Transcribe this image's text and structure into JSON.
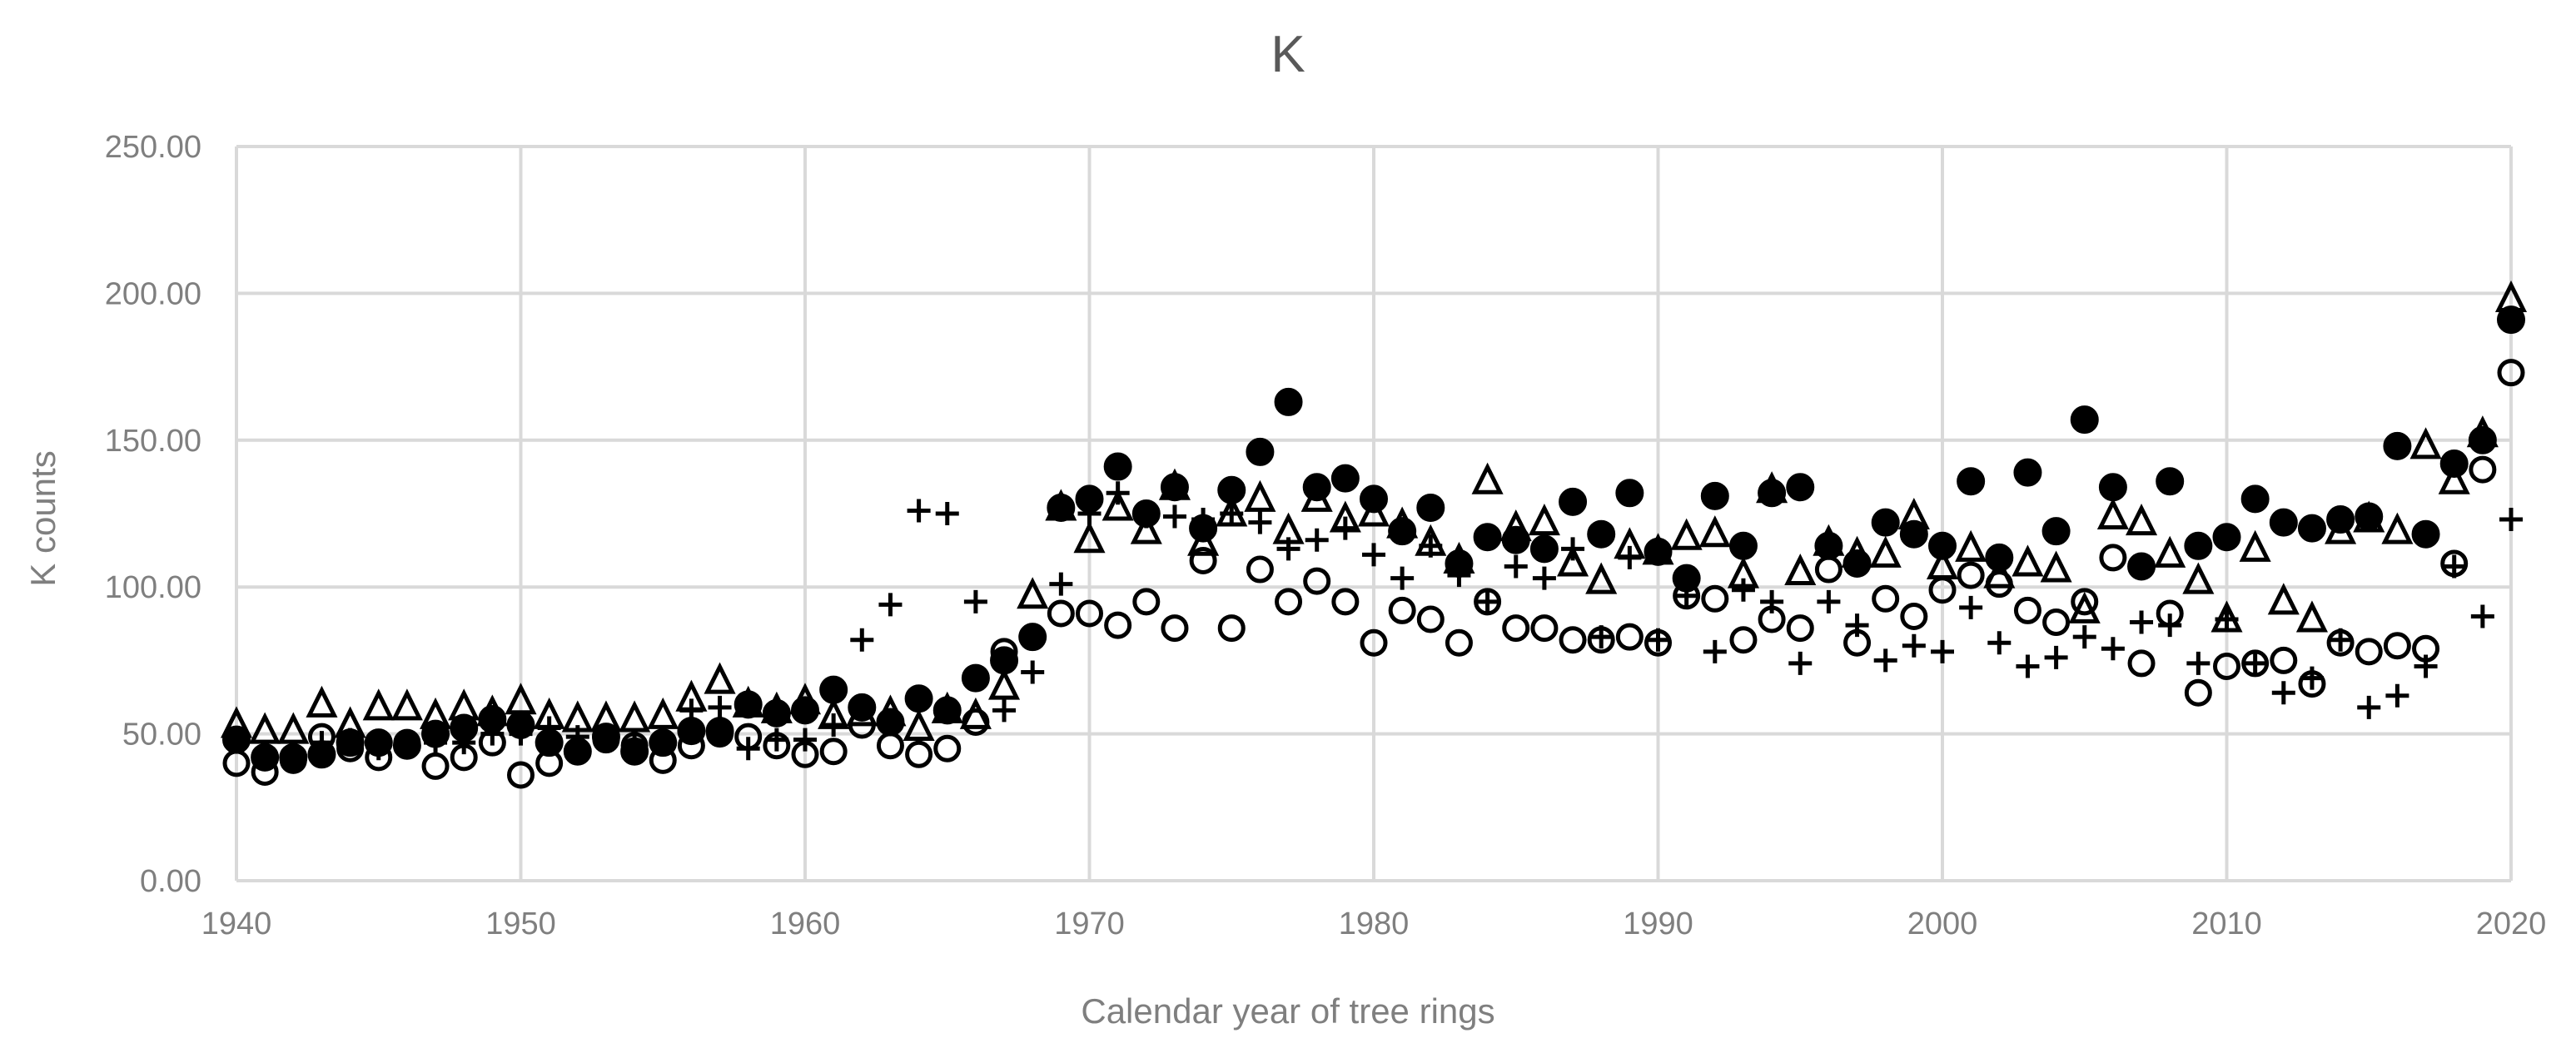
{
  "chart_data": {
    "type": "scatter",
    "title": "K",
    "xlabel": "Calendar year of tree rings",
    "ylabel": "K counts",
    "xlim": [
      1940,
      2020
    ],
    "ylim": [
      0,
      250
    ],
    "x_ticks": [
      "1940",
      "1950",
      "1960",
      "1970",
      "1980",
      "1990",
      "2000",
      "2010",
      "2020"
    ],
    "y_ticks": [
      "0.00",
      "50.00",
      "100.00",
      "150.00",
      "200.00",
      "250.00"
    ],
    "grid": true,
    "legend": "none",
    "series": [
      {
        "name": "filled-circle",
        "marker": "filled-circle",
        "x": [
          1940,
          1941,
          1942,
          1943,
          1944,
          1945,
          1946,
          1947,
          1948,
          1949,
          1950,
          1951,
          1952,
          1953,
          1954,
          1955,
          1956,
          1957,
          1958,
          1959,
          1960,
          1961,
          1962,
          1963,
          1964,
          1965,
          1966,
          1967,
          1968,
          1969,
          1970,
          1971,
          1972,
          1973,
          1974,
          1975,
          1976,
          1977,
          1978,
          1979,
          1980,
          1981,
          1982,
          1983,
          1984,
          1985,
          1986,
          1987,
          1988,
          1989,
          1990,
          1991,
          1992,
          1993,
          1994,
          1995,
          1996,
          1997,
          1998,
          1999,
          2000,
          2001,
          2002,
          2003,
          2004,
          2005,
          2006,
          2007,
          2008,
          2009,
          2010,
          2011,
          2012,
          2013,
          2014,
          2015,
          2016,
          2017,
          2018,
          2019,
          2020
        ],
        "y": [
          48,
          42,
          42,
          43,
          47,
          47,
          46,
          50,
          52,
          55,
          53,
          47,
          44,
          49,
          44,
          47,
          51,
          51,
          60,
          57,
          58,
          65,
          59,
          54,
          62,
          58,
          69,
          75,
          83,
          127,
          130,
          141,
          125,
          134,
          120,
          133,
          146,
          163,
          134,
          137,
          130,
          119,
          127,
          108,
          117,
          116,
          113,
          129,
          118,
          132,
          112,
          103,
          131,
          114,
          132,
          134,
          114,
          108,
          122,
          118,
          114,
          136,
          110,
          139,
          119,
          157,
          134,
          107,
          136,
          114,
          117,
          130,
          122,
          120,
          123,
          124,
          148,
          118,
          142,
          150,
          191
        ]
      },
      {
        "name": "open-circle",
        "marker": "open-circle",
        "x": [
          1940,
          1941,
          1942,
          1943,
          1944,
          1945,
          1946,
          1947,
          1948,
          1949,
          1950,
          1951,
          1952,
          1953,
          1954,
          1955,
          1956,
          1957,
          1958,
          1959,
          1960,
          1961,
          1962,
          1963,
          1964,
          1965,
          1966,
          1967,
          1968,
          1969,
          1970,
          1971,
          1972,
          1973,
          1974,
          1975,
          1976,
          1977,
          1978,
          1979,
          1980,
          1981,
          1982,
          1983,
          1984,
          1985,
          1986,
          1987,
          1988,
          1989,
          1990,
          1991,
          1992,
          1993,
          1994,
          1995,
          1996,
          1997,
          1998,
          1999,
          2000,
          2001,
          2002,
          2003,
          2004,
          2005,
          2006,
          2007,
          2008,
          2009,
          2010,
          2011,
          2012,
          2013,
          2014,
          2015,
          2016,
          2017,
          2018,
          2019,
          2020
        ],
        "y": [
          40,
          37,
          41,
          49,
          45,
          42,
          47,
          39,
          42,
          47,
          36,
          40,
          44,
          48,
          46,
          41,
          46,
          50,
          49,
          46,
          43,
          44,
          53,
          46,
          43,
          45,
          54,
          78,
          83,
          91,
          91,
          87,
          95,
          86,
          109,
          86,
          106,
          95,
          102,
          95,
          81,
          92,
          89,
          81,
          95,
          86,
          86,
          82,
          82,
          83,
          81,
          97,
          96,
          82,
          89,
          86,
          106,
          81,
          96,
          90,
          99,
          104,
          101,
          92,
          88,
          95,
          110,
          74,
          91,
          64,
          73,
          74,
          75,
          67,
          81,
          78,
          80,
          79,
          108,
          140,
          173
        ]
      },
      {
        "name": "triangle",
        "marker": "triangle",
        "x": [
          1940,
          1941,
          1942,
          1943,
          1944,
          1945,
          1946,
          1947,
          1948,
          1949,
          1950,
          1951,
          1952,
          1953,
          1954,
          1955,
          1956,
          1957,
          1958,
          1959,
          1960,
          1961,
          1962,
          1963,
          1964,
          1965,
          1966,
          1967,
          1968,
          1969,
          1970,
          1971,
          1972,
          1973,
          1974,
          1975,
          1976,
          1977,
          1978,
          1979,
          1980,
          1981,
          1982,
          1983,
          1984,
          1985,
          1986,
          1987,
          1988,
          1989,
          1990,
          1991,
          1992,
          1993,
          1994,
          1995,
          1996,
          1997,
          1998,
          1999,
          2000,
          2001,
          2002,
          2003,
          2004,
          2005,
          2006,
          2007,
          2008,
          2009,
          2010,
          2011,
          2012,
          2013,
          2014,
          2015,
          2016,
          2017,
          2018,
          2019,
          2020
        ],
        "y": [
          53,
          51,
          51,
          60,
          53,
          59,
          59,
          56,
          59,
          57,
          61,
          56,
          55,
          55,
          55,
          56,
          62,
          68,
          60,
          58,
          61,
          56,
          57,
          57,
          52,
          58,
          56,
          66,
          97,
          127,
          116,
          127,
          119,
          134,
          115,
          125,
          130,
          119,
          130,
          123,
          125,
          121,
          115,
          109,
          136,
          120,
          122,
          108,
          102,
          114,
          112,
          117,
          118,
          104,
          133,
          105,
          115,
          111,
          111,
          124,
          107,
          113,
          104,
          108,
          106,
          92,
          124,
          122,
          111,
          102,
          89,
          113,
          95,
          89,
          119,
          123,
          119,
          148,
          136,
          152,
          198
        ]
      },
      {
        "name": "plus",
        "marker": "plus",
        "x": [
          1940,
          1941,
          1942,
          1943,
          1944,
          1945,
          1946,
          1947,
          1948,
          1949,
          1950,
          1951,
          1952,
          1953,
          1954,
          1955,
          1956,
          1957,
          1958,
          1959,
          1960,
          1961,
          1962,
          1963,
          1964,
          1965,
          1966,
          1967,
          1968,
          1969,
          1970,
          1971,
          1972,
          1973,
          1974,
          1975,
          1976,
          1977,
          1978,
          1979,
          1980,
          1981,
          1982,
          1983,
          1984,
          1985,
          1986,
          1987,
          1988,
          1989,
          1990,
          1991,
          1992,
          1993,
          1994,
          1995,
          1996,
          1997,
          1998,
          1999,
          2000,
          2001,
          2002,
          2003,
          2004,
          2005,
          2006,
          2007,
          2008,
          2009,
          2010,
          2011,
          2012,
          2013,
          2014,
          2015,
          2016,
          2017,
          2018,
          2019,
          2020
        ],
        "y": [
          48,
          43,
          43,
          47,
          48,
          45,
          47,
          47,
          47,
          50,
          50,
          52,
          49,
          49,
          46,
          48,
          58,
          59,
          45,
          48,
          48,
          53,
          82,
          94,
          126,
          125,
          95,
          58,
          71,
          101,
          125,
          132,
          124,
          124,
          123,
          125,
          122,
          113,
          116,
          120,
          111,
          103,
          114,
          104,
          95,
          107,
          103,
          113,
          83,
          110,
          82,
          97,
          78,
          99,
          95,
          74,
          95,
          87,
          75,
          80,
          78,
          93,
          81,
          73,
          76,
          83,
          79,
          88,
          87,
          74,
          89,
          74,
          64,
          69,
          82,
          59,
          63,
          73,
          107,
          90,
          123
        ]
      }
    ]
  }
}
